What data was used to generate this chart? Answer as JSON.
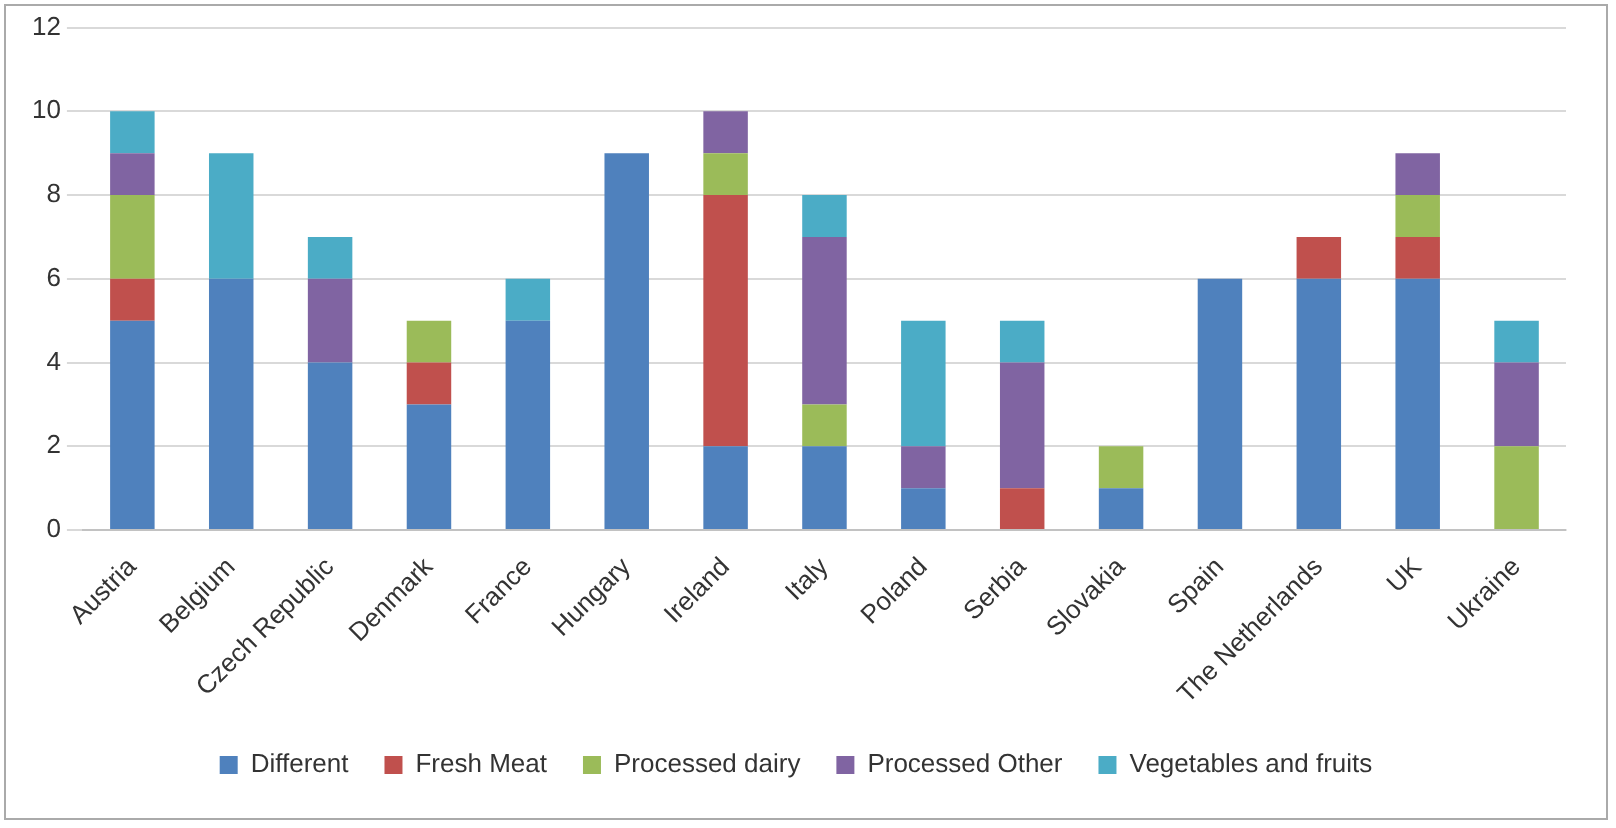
{
  "chart_data": {
    "type": "bar",
    "stacked": true,
    "categories": [
      "Austria",
      "Belgium",
      "Czech Republic",
      "Denmark",
      "France",
      "Hungary",
      "Ireland",
      "Italy",
      "Poland",
      "Serbia",
      "Slovakia",
      "Spain",
      "The Netherlands",
      "UK",
      "Ukraine"
    ],
    "series": [
      {
        "name": "Different",
        "color": "#4f81bd",
        "values": [
          5,
          6,
          4,
          3,
          5,
          9,
          2,
          2,
          1,
          0,
          1,
          6,
          6,
          6,
          0
        ]
      },
      {
        "name": "Fresh Meat",
        "color": "#c0504d",
        "values": [
          1,
          0,
          0,
          1,
          0,
          0,
          6,
          0,
          0,
          1,
          0,
          0,
          1,
          1,
          0
        ]
      },
      {
        "name": "Processed dairy",
        "color": "#9bbb59",
        "values": [
          2,
          0,
          0,
          1,
          0,
          0,
          1,
          1,
          0,
          0,
          1,
          0,
          0,
          1,
          2
        ]
      },
      {
        "name": "Processed Other",
        "color": "#8064a2",
        "values": [
          1,
          0,
          2,
          0,
          0,
          0,
          1,
          4,
          1,
          3,
          0,
          0,
          0,
          1,
          2
        ]
      },
      {
        "name": "Vegetables and fruits",
        "color": "#4bacc6",
        "values": [
          1,
          3,
          1,
          0,
          1,
          0,
          0,
          1,
          3,
          1,
          0,
          0,
          0,
          0,
          1
        ]
      }
    ],
    "ylim": [
      0,
      12
    ],
    "yticks": [
      0,
      2,
      4,
      6,
      8,
      10,
      12
    ],
    "grid": "y",
    "legend": "bottom"
  }
}
